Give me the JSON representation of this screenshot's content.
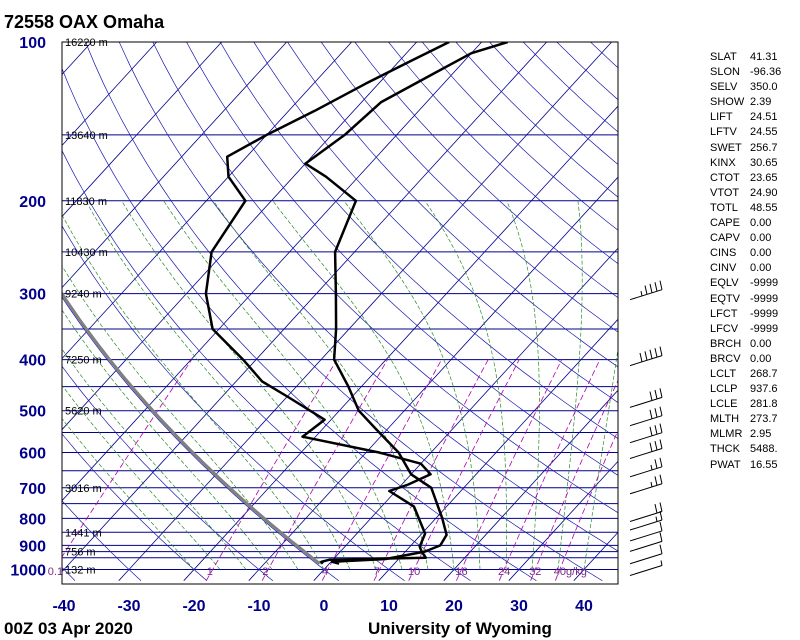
{
  "header": {
    "title": "72558 OAX Omaha"
  },
  "footer": {
    "datetime": "00Z 03 Apr 2020",
    "credit": "University of Wyoming"
  },
  "indices": [
    {
      "key": "SLAT",
      "value": "41.31"
    },
    {
      "key": "SLON",
      "value": "-96.36"
    },
    {
      "key": "SELV",
      "value": "350.0"
    },
    {
      "key": "SHOW",
      "value": "2.39"
    },
    {
      "key": "LIFT",
      "value": "24.51"
    },
    {
      "key": "LFTV",
      "value": "24.55"
    },
    {
      "key": "SWET",
      "value": "256.7"
    },
    {
      "key": "KINX",
      "value": "30.65"
    },
    {
      "key": "CTOT",
      "value": "23.65"
    },
    {
      "key": "VTOT",
      "value": "24.90"
    },
    {
      "key": "TOTL",
      "value": "48.55"
    },
    {
      "key": "CAPE",
      "value": "0.00"
    },
    {
      "key": "CAPV",
      "value": "0.00"
    },
    {
      "key": "CINS",
      "value": "0.00"
    },
    {
      "key": "CINV",
      "value": "0.00"
    },
    {
      "key": "EQLV",
      "value": "-9999"
    },
    {
      "key": "EQTV",
      "value": "-9999"
    },
    {
      "key": "LFCT",
      "value": "-9999"
    },
    {
      "key": "LFCV",
      "value": "-9999"
    },
    {
      "key": "BRCH",
      "value": "0.00"
    },
    {
      "key": "BRCV",
      "value": "0.00"
    },
    {
      "key": "LCLT",
      "value": "268.7"
    },
    {
      "key": "LCLP",
      "value": "937.6"
    },
    {
      "key": "LCLE",
      "value": "281.8"
    },
    {
      "key": "MLTH",
      "value": "273.7"
    },
    {
      "key": "MLMR",
      "value": "2.95"
    },
    {
      "key": "THCK",
      "value": "5488."
    },
    {
      "key": "PWAT",
      "value": "16.55"
    }
  ],
  "chart_data": {
    "type": "skew-t",
    "title": "72558 OAX Omaha",
    "pressure_ticks": [
      100,
      200,
      300,
      400,
      500,
      600,
      700,
      800,
      900,
      1000
    ],
    "temperature_ticks": [
      -40,
      -30,
      -20,
      -10,
      0,
      10,
      20,
      30,
      40
    ],
    "xlim": [
      -40,
      45
    ],
    "plim": [
      1050,
      100
    ],
    "height_labels": [
      {
        "p": 100,
        "text": "16220 m"
      },
      {
        "p": 150,
        "text": "13640 m"
      },
      {
        "p": 200,
        "text": "11830 m"
      },
      {
        "p": 250,
        "text": "10430 m"
      },
      {
        "p": 300,
        "text": "9240 m"
      },
      {
        "p": 400,
        "text": "7250 m"
      },
      {
        "p": 500,
        "text": "5620 m"
      },
      {
        "p": 700,
        "text": "3016 m"
      },
      {
        "p": 850,
        "text": "1441 m"
      },
      {
        "p": 925,
        "text": "756 m"
      },
      {
        "p": 1000,
        "text": "132 m"
      }
    ],
    "mixing_ratio_labels": [
      "0.1",
      "1",
      "2",
      "4",
      "7",
      "10",
      "16",
      "24",
      "32",
      "40g/kg"
    ],
    "mixing_ratio_values": [
      0.1,
      1,
      2,
      4,
      7,
      10,
      16,
      24,
      32,
      40
    ],
    "temperature_profile": [
      [
        975,
        1.5
      ],
      [
        967,
        0.2
      ],
      [
        955,
        8
      ],
      [
        925,
        13
      ],
      [
        900,
        14.5
      ],
      [
        860,
        14
      ],
      [
        800,
        11
      ],
      [
        700,
        5
      ],
      [
        660,
        0
      ],
      [
        600,
        -5
      ],
      [
        540,
        -12
      ],
      [
        500,
        -17
      ],
      [
        450,
        -22
      ],
      [
        400,
        -28
      ],
      [
        350,
        -32
      ],
      [
        300,
        -37
      ],
      [
        250,
        -43
      ],
      [
        200,
        -47
      ],
      [
        180,
        -55
      ],
      [
        170,
        -60
      ],
      [
        150,
        -58
      ],
      [
        130,
        -57
      ],
      [
        115,
        -53
      ],
      [
        105,
        -50
      ],
      [
        100,
        -46
      ]
    ],
    "dewpoint_profile": [
      [
        975,
        -1
      ],
      [
        967,
        -1.5
      ],
      [
        958,
        -0.5
      ],
      [
        950,
        14
      ],
      [
        925,
        12.5
      ],
      [
        905,
        11.5
      ],
      [
        855,
        10.5
      ],
      [
        760,
        5
      ],
      [
        710,
        -1
      ],
      [
        690,
        1
      ],
      [
        660,
        3
      ],
      [
        630,
        0
      ],
      [
        600,
        -8
      ],
      [
        560,
        -22
      ],
      [
        520,
        -21
      ],
      [
        470,
        -30
      ],
      [
        440,
        -36
      ],
      [
        400,
        -42
      ],
      [
        350,
        -51
      ],
      [
        300,
        -57
      ],
      [
        250,
        -62
      ],
      [
        200,
        -64
      ],
      [
        180,
        -70
      ],
      [
        165,
        -73
      ],
      [
        150,
        -70
      ],
      [
        135,
        -66
      ],
      [
        120,
        -62
      ],
      [
        108,
        -58
      ],
      [
        100,
        -55
      ]
    ],
    "wind_profile": [
      {
        "p": 300,
        "speed": 45
      },
      {
        "p": 400,
        "speed": 50
      },
      {
        "p": 480,
        "speed": 30
      },
      {
        "p": 520,
        "speed": 30
      },
      {
        "p": 560,
        "speed": 30
      },
      {
        "p": 600,
        "speed": 30
      },
      {
        "p": 650,
        "speed": 25
      },
      {
        "p": 700,
        "speed": 25
      },
      {
        "p": 790,
        "speed": 20
      },
      {
        "p": 820,
        "speed": 15
      },
      {
        "p": 860,
        "speed": 10
      },
      {
        "p": 900,
        "speed": 10
      },
      {
        "p": 950,
        "speed": 10
      },
      {
        "p": 1000,
        "speed": 5
      }
    ],
    "colors": {
      "isotherm": "#00008b",
      "isobar": "#00008b",
      "dry_adiabat": "#1a1ab0",
      "moist_adiabat": "#2a8a2a",
      "mixing_ratio": "#b000b0",
      "profile": "#000000",
      "parcel": "#808080",
      "pressure_label": "#00008b"
    }
  }
}
